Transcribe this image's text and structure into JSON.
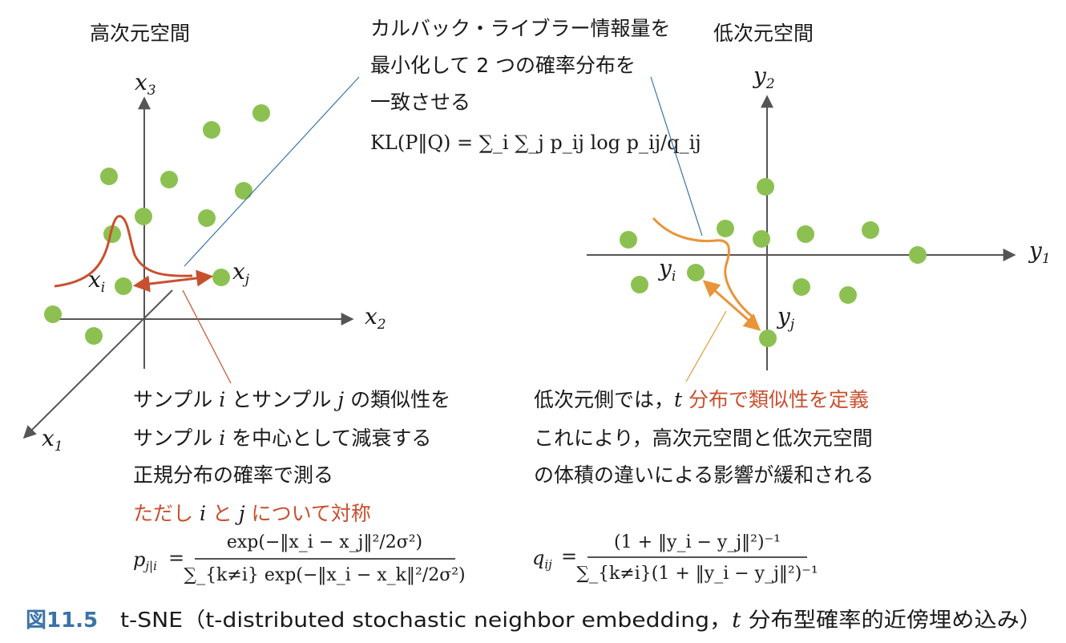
{
  "left_panel": {
    "title": "高次元空間",
    "axis_labels": {
      "x3": "x",
      "x3_sub": "3",
      "x2": "x",
      "x2_sub": "2",
      "x1": "x",
      "x1_sub": "1"
    },
    "point_labels": {
      "xi": "x",
      "xi_sub": "i",
      "xj": "x",
      "xj_sub": "j"
    },
    "annotation": {
      "line1_a": "サンプル ",
      "line1_i": "i",
      "line1_b": " とサンプル ",
      "line1_j": "j",
      "line1_c": " の類似性を",
      "line2_a": "サンプル ",
      "line2_i": "i",
      "line2_b": " を中心として減衰する",
      "line3": "正規分布の確率で測る",
      "line4_a": "ただし ",
      "line4_i": "i",
      "line4_b": " と ",
      "line4_j": "j",
      "line4_c": " について対称"
    },
    "formula": {
      "lhs": "p",
      "lhs_sub": "j|i",
      "eq": "=",
      "numerator": "exp(−‖x_i − x_j‖²/2σ²)",
      "denominator": "∑_{k≠i} exp(−‖x_i − x_k‖²/2σ²)"
    }
  },
  "top_annotation": {
    "line1": "カルバック・ライブラー情報量を",
    "line2": "最小化して 2 つの確率分布を",
    "line3": "一致させる",
    "formula": "KL(P‖Q) = ∑_i ∑_j p_ij log p_ij/q_ij"
  },
  "right_panel": {
    "title": "低次元空間",
    "axis_labels": {
      "y2": "y",
      "y2_sub": "2",
      "y1": "y",
      "y1_sub": "1"
    },
    "point_labels": {
      "yi": "y",
      "yi_sub": "i",
      "yj": "y",
      "yj_sub": "j"
    },
    "annotation": {
      "line1_a": "低次元側では，",
      "line1_t": "t",
      "line1_b": " 分布で類似性を定義",
      "line2": "これにより，高次元空間と低次元空間",
      "line3": "の体積の違いによる影響が緩和される"
    },
    "formula": {
      "lhs": "q",
      "lhs_sub": "ij",
      "eq": "=",
      "numerator": "(1 + ‖y_i − y_j‖²)⁻¹",
      "denominator": "∑_{k≠i}(1 + ‖y_i − y_j‖²)⁻¹"
    }
  },
  "caption": {
    "number": "図11.5",
    "text_a": "t-SNE（t-distributed stochastic neighbor embedding，",
    "text_t": "t",
    "text_b": " 分布型確率的近傍埋め込み）"
  },
  "colors": {
    "point": "#8cc152",
    "red": "#c8502f",
    "orange": "#e8953a",
    "axis": "#555555",
    "leader_blue": "#3b73a8",
    "caption_blue": "#3b73a8"
  }
}
